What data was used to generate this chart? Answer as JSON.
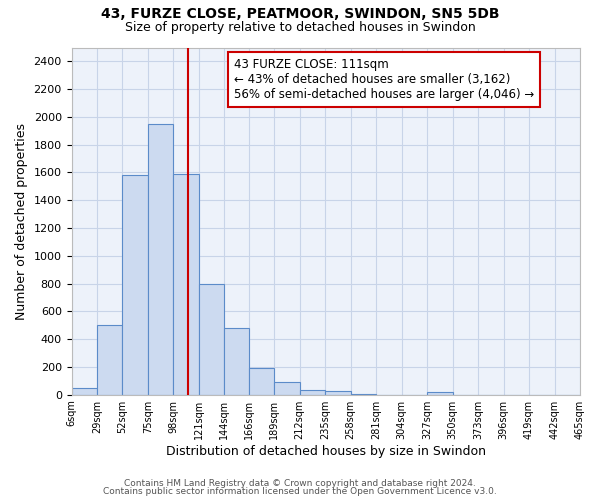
{
  "title1": "43, FURZE CLOSE, PEATMOOR, SWINDON, SN5 5DB",
  "title2": "Size of property relative to detached houses in Swindon",
  "xlabel": "Distribution of detached houses by size in Swindon",
  "ylabel": "Number of detached properties",
  "bin_edges": [
    6,
    29,
    52,
    75,
    98,
    121,
    144,
    166,
    189,
    212,
    235,
    258,
    281,
    304,
    327,
    350,
    373,
    396,
    419,
    442,
    465
  ],
  "bin_counts": [
    50,
    500,
    1580,
    1950,
    1590,
    800,
    480,
    190,
    90,
    35,
    30,
    5,
    0,
    0,
    20,
    0,
    0,
    0,
    0,
    0
  ],
  "bar_color": "#ccdaf0",
  "bar_edge_color": "#5b8bc9",
  "property_value": 111,
  "vline_color": "#cc0000",
  "annotation_line1": "43 FURZE CLOSE: 111sqm",
  "annotation_line2": "← 43% of detached houses are smaller (3,162)",
  "annotation_line3": "56% of semi-detached houses are larger (4,046) →",
  "annotation_box_edge_color": "#cc0000",
  "annotation_box_face_color": "#ffffff",
  "annotation_fontsize": 8.5,
  "ylim": [
    0,
    2500
  ],
  "yticks": [
    0,
    200,
    400,
    600,
    800,
    1000,
    1200,
    1400,
    1600,
    1800,
    2000,
    2200,
    2400
  ],
  "tick_labels": [
    "6sqm",
    "29sqm",
    "52sqm",
    "75sqm",
    "98sqm",
    "121sqm",
    "144sqm",
    "166sqm",
    "189sqm",
    "212sqm",
    "235sqm",
    "258sqm",
    "281sqm",
    "304sqm",
    "327sqm",
    "350sqm",
    "373sqm",
    "396sqm",
    "419sqm",
    "442sqm",
    "465sqm"
  ],
  "footer1": "Contains HM Land Registry data © Crown copyright and database right 2024.",
  "footer2": "Contains public sector information licensed under the Open Government Licence v3.0.",
  "bg_color": "#ffffff",
  "plot_bg_color": "#edf2fa",
  "grid_color": "#c8d4e8",
  "title1_fontsize": 10,
  "title2_fontsize": 9
}
